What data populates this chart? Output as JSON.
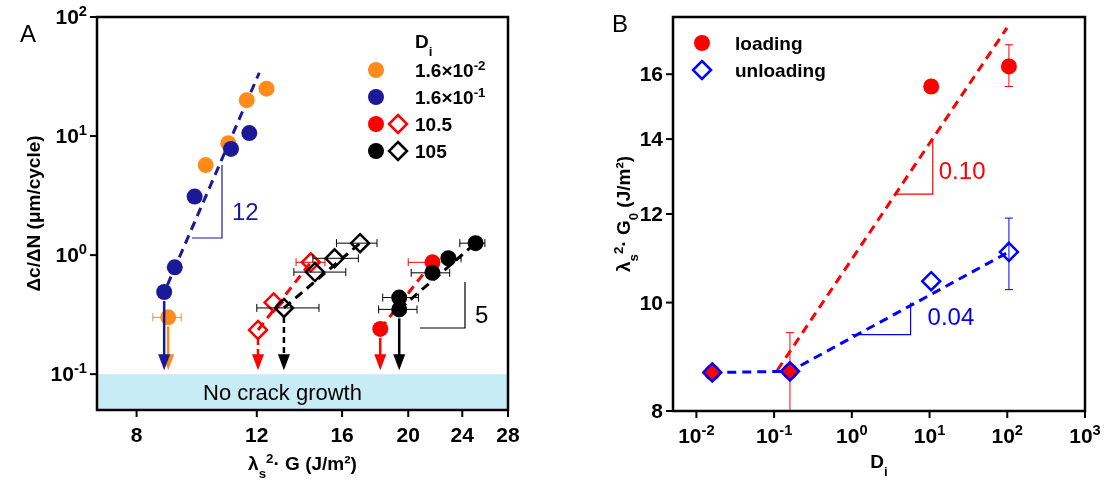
{
  "chart_data": [
    {
      "type": "scatter",
      "title": "A",
      "xlabel": "λ$_{s}$$^{2}$· G (J/m²)",
      "ylabel": "Δc/ΔN (μm/cycle)",
      "legend_title": "D$_{i}$",
      "log": "xy",
      "legend": "top right",
      "xlim": [
        7,
        28
      ],
      "xticks": [
        8,
        12,
        16,
        20,
        24,
        28
      ],
      "ylim": [
        0.05,
        100
      ],
      "yticks": [
        {
          "value": 0.1,
          "label": "10$^{-1}$"
        },
        {
          "value": 1,
          "label": "10$^{0}$"
        },
        {
          "value": 10,
          "label": "10$^{1}$"
        },
        {
          "value": 100,
          "label": "10$^{2}$"
        }
      ],
      "bands": [
        {
          "axis": "y",
          "from": 0.05,
          "to": 0.1,
          "label": "No crack growth",
          "color": "#c8ecf6"
        }
      ],
      "annotations": [
        "12",
        "5"
      ],
      "series": [
        {
          "name": "1.6×10$^{-2}$",
          "color": "#ff8c1a",
          "marker": "circle",
          "x": [
            8.9,
            10.1,
            10.9,
            11.6,
            12.4
          ],
          "values": [
            0.3,
            5.7,
            8.7,
            20,
            25
          ],
          "xerrors": [
            [
              8.45,
              9.3
            ],
            null,
            null,
            null,
            null
          ]
        },
        {
          "name": "1.6×10$^{-1}$",
          "color": "#1a1a99",
          "marker": "circle",
          "x": [
            8.78,
            9.1,
            9.73,
            11.0,
            11.7
          ],
          "values": [
            0.49,
            0.79,
            3.1,
            7.8,
            10.6
          ]
        },
        {
          "name": "10.5",
          "color": "#ff0000",
          "marker": "circle",
          "x": [
            18.2,
            21.7
          ],
          "values": [
            0.24,
            0.87
          ],
          "xerrors": [
            null,
            [
              20.0,
              22.2
            ]
          ]
        },
        {
          "color": "#ff0000",
          "marker": "diamond",
          "x": [
            12.05,
            12.7,
            14.4
          ],
          "values": [
            0.235,
            0.4,
            0.87
          ],
          "xerrors": [
            null,
            null,
            [
              13.7,
              15.1
            ]
          ]
        },
        {
          "name": "105",
          "color": "#000000",
          "marker": "circle",
          "x": [
            19.4,
            19.4,
            21.7,
            22.9,
            25.1
          ],
          "values": [
            0.35,
            0.44,
            0.71,
            0.94,
            1.26
          ],
          "xerrors": [
            [
              18.1,
              20.6
            ],
            [
              18.35,
              20.7
            ],
            [
              20.2,
              23.0
            ],
            [
              22.4,
              23.9
            ],
            [
              23.8,
              25.9
            ]
          ]
        },
        {
          "color": "#000000",
          "marker": "diamond",
          "x": [
            13.15,
            14.6,
            15.6,
            17.0
          ],
          "values": [
            0.36,
            0.72,
            0.94,
            1.26
          ],
          "xerrors": [
            [
              12.0,
              14.8
            ],
            [
              13.6,
              16.2
            ],
            [
              14.5,
              16.9
            ],
            [
              15.7,
              18.0
            ]
          ]
        },
        {
          "type": "line",
          "color": "#1a1a99",
          "line_style": "dashed",
          "x": [
            8.7,
            12.1
          ],
          "values": [
            0.43,
            34
          ]
        },
        {
          "type": "line",
          "color": "#ff0000",
          "line_style": "dashed",
          "x": [
            12.05,
            14.4
          ],
          "values": [
            0.235,
            0.87
          ]
        },
        {
          "type": "line",
          "color": "#000000",
          "line_style": "dashed",
          "x": [
            13.15,
            17.0
          ],
          "values": [
            0.36,
            1.26
          ]
        },
        {
          "type": "line",
          "color": "#ff0000",
          "line_style": "dashed",
          "x": [
            18.2,
            21.7
          ],
          "values": [
            0.24,
            0.87
          ]
        },
        {
          "type": "line",
          "color": "#000000",
          "line_style": "dashed",
          "x": [
            19.4,
            25.1
          ],
          "values": [
            0.35,
            1.26
          ]
        }
      ]
    },
    {
      "type": "scatter",
      "title": "B",
      "xlabel": "D$_{i}$",
      "ylabel": "λ$_{s}$$^{2}$· G$_{0}$ (J/m²)",
      "log": "xy",
      "legend": "top left",
      "xlim": [
        0.005,
        1000
      ],
      "xticks": [
        {
          "value": 0.01,
          "label": "10$^{-2}$"
        },
        {
          "value": 0.1,
          "label": "10$^{-1}$"
        },
        {
          "value": 1,
          "label": "10$^{0}$"
        },
        {
          "value": 10,
          "label": "10$^{1}$"
        },
        {
          "value": 100,
          "label": "10$^{2}$"
        },
        {
          "value": 1000,
          "label": "10$^{3}$"
        }
      ],
      "ylim": [
        8,
        18
      ],
      "yticks": [
        8,
        10,
        12,
        14,
        16
      ],
      "annotations": [
        {
          "text": "0.10",
          "x": 11,
          "y": 14
        },
        {
          "text": "0.04",
          "x": 5.7,
          "y": 10
        }
      ],
      "series": [
        {
          "name": "loading",
          "color": "#ff0000",
          "marker": "circle",
          "x": [
            0.016,
            0.16,
            10.5,
            105
          ],
          "values": [
            8.66,
            8.68,
            15.6,
            16.26
          ],
          "errors": [
            null,
            [
              8.0,
              9.4
            ],
            null,
            [
              15.6,
              17.0
            ]
          ]
        },
        {
          "name": "unloading",
          "color": "#0000ff",
          "marker": "diamond",
          "x": [
            0.016,
            0.16,
            10.5,
            105
          ],
          "values": [
            8.66,
            8.68,
            10.45,
            11.1
          ],
          "errors": [
            null,
            null,
            null,
            [
              10.27,
              11.9
            ]
          ]
        },
        {
          "type": "line",
          "color": "#ff0000",
          "line_style": "dashed",
          "x": [
            0.11,
            99
          ],
          "values": [
            8.7,
            17.6
          ]
        },
        {
          "type": "line",
          "color": "#0000ff",
          "line_style": "dashed",
          "x": [
            0.016,
            0.16,
            105
          ],
          "values": [
            8.66,
            8.68,
            11.1
          ]
        }
      ]
    }
  ]
}
